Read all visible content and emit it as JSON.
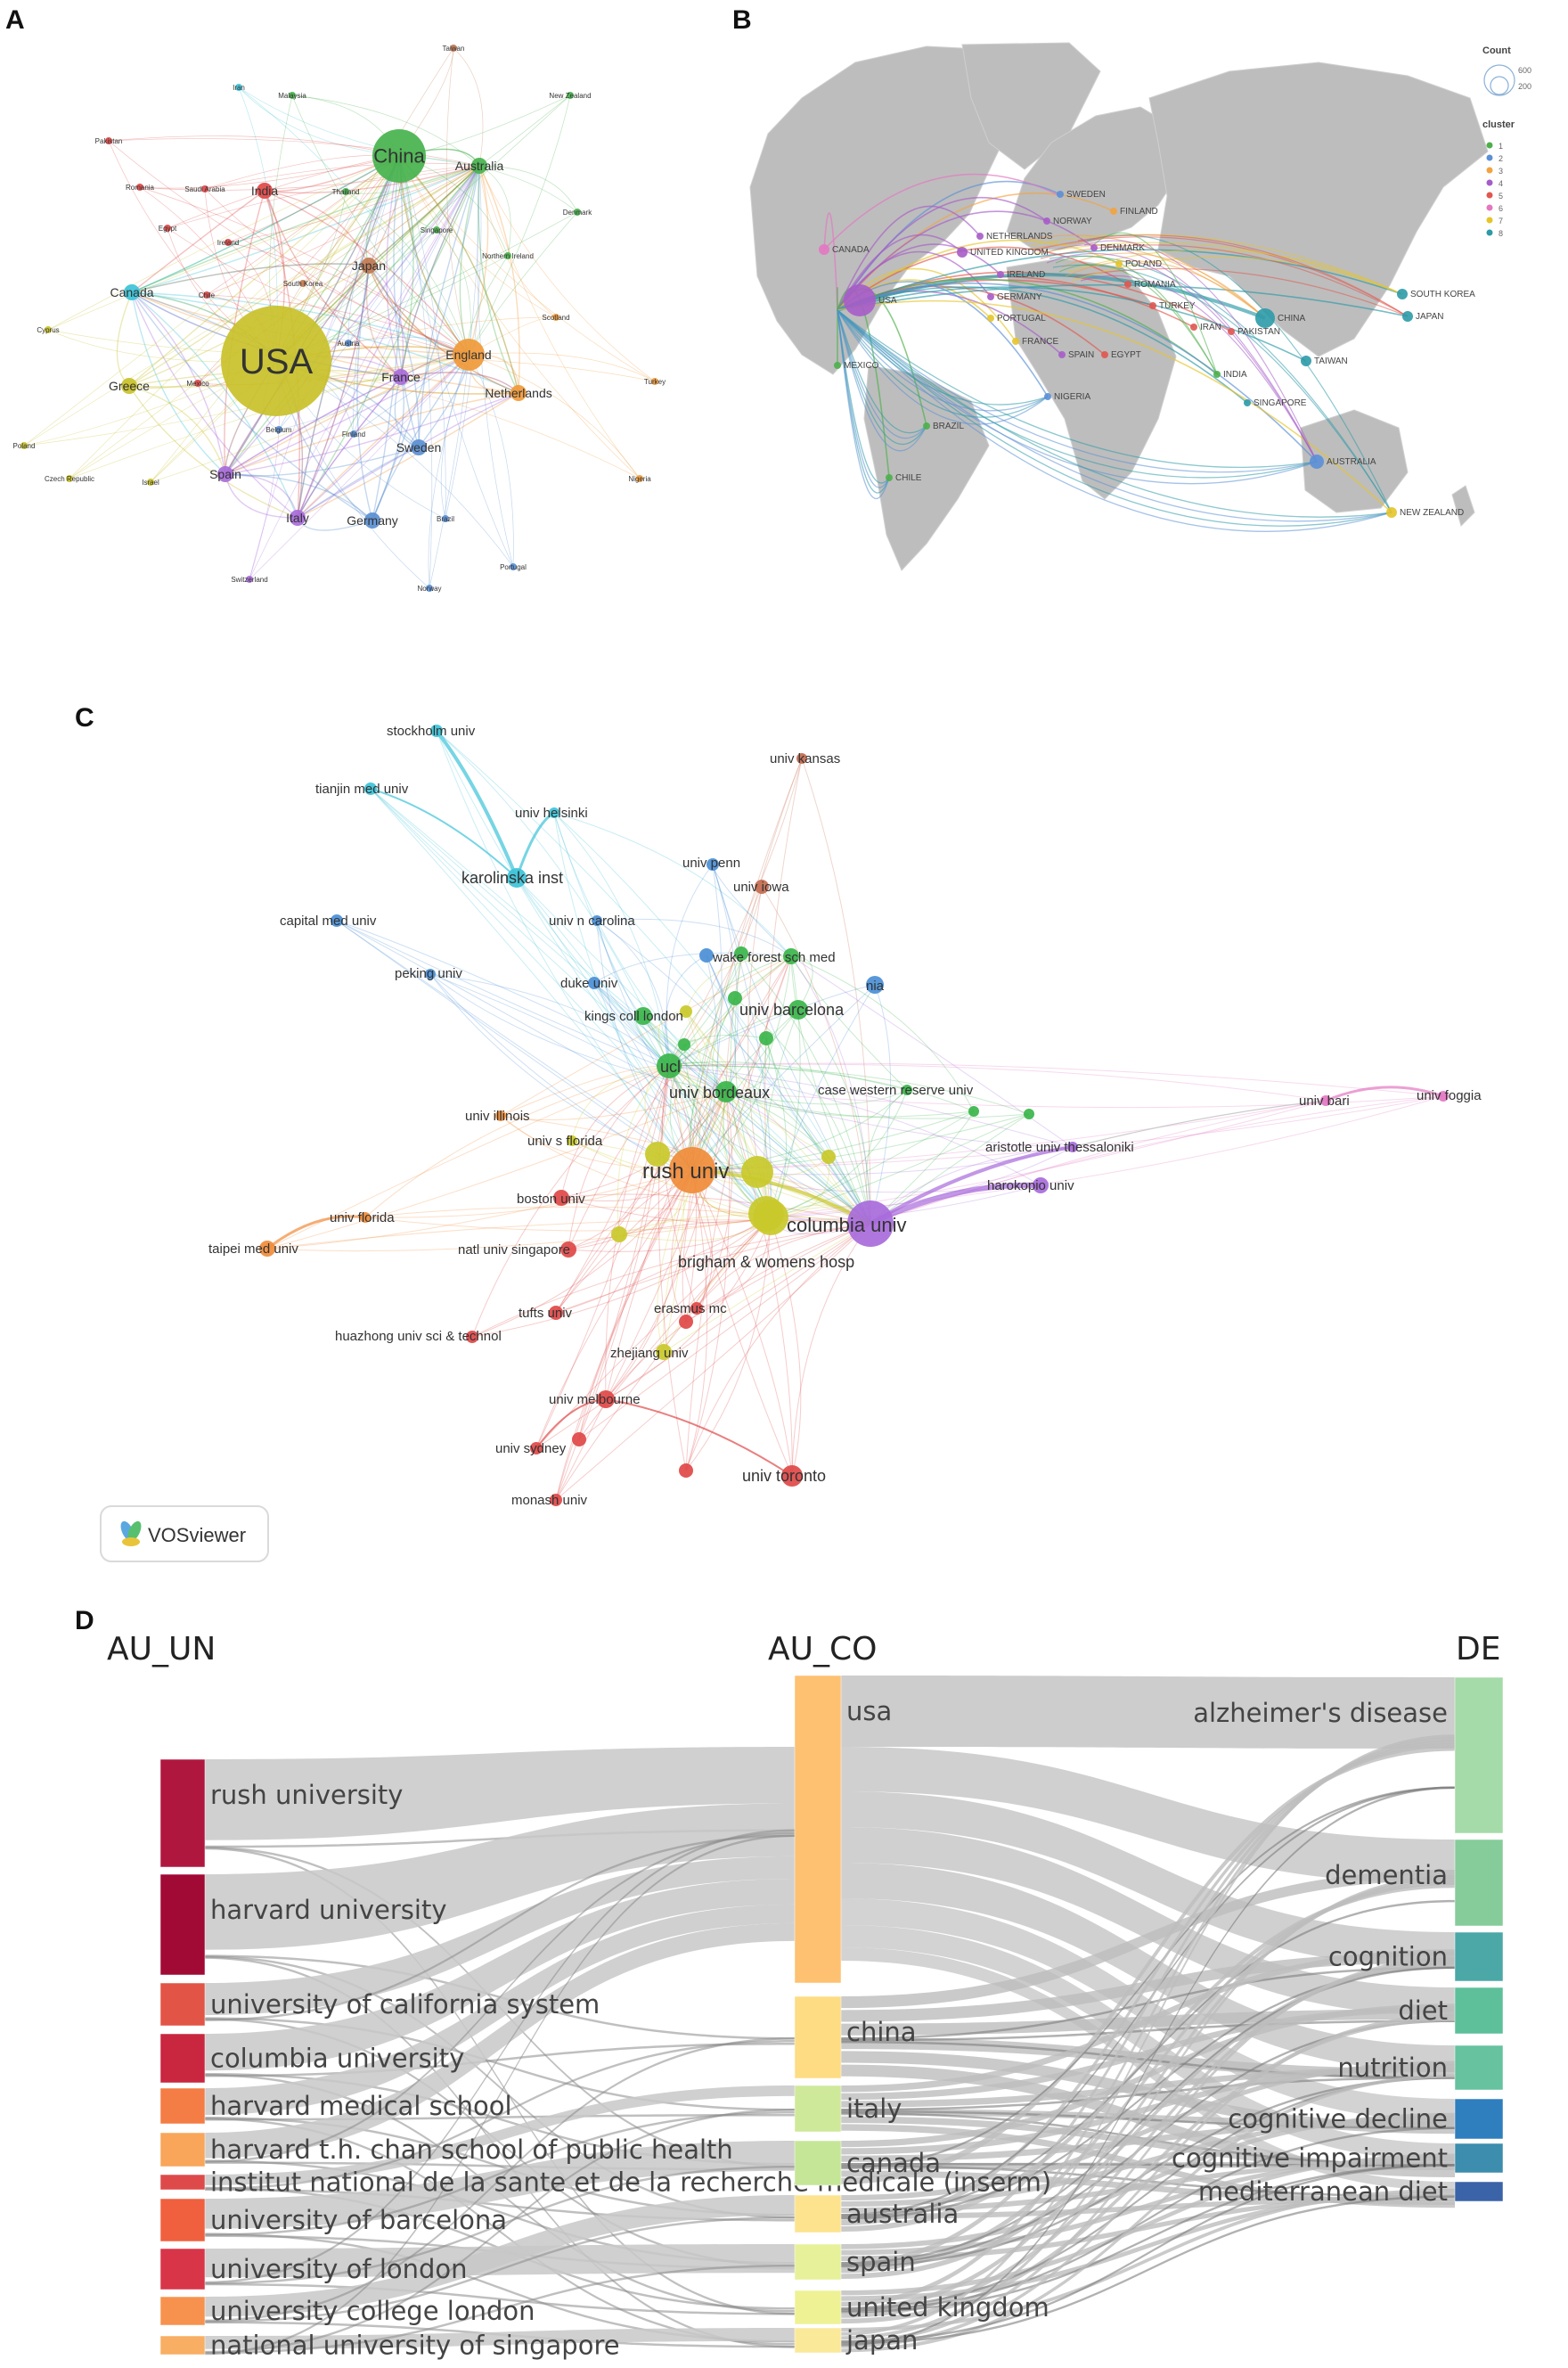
{
  "panels": {
    "a": "A",
    "b": "B",
    "c": "C",
    "d": "D"
  },
  "panel_a": {
    "nodes": [
      {
        "name": "USA",
        "cluster": 7,
        "size": 3
      },
      {
        "name": "China",
        "cluster": 1,
        "size": 2
      },
      {
        "name": "Australia",
        "cluster": 1,
        "size": 1
      },
      {
        "name": "England",
        "cluster": 3,
        "size": 1.5
      },
      {
        "name": "Netherlands",
        "cluster": 3,
        "size": 1
      },
      {
        "name": "Canada",
        "cluster": 8,
        "size": 1
      },
      {
        "name": "Japan",
        "cluster": 9,
        "size": 1
      },
      {
        "name": "France",
        "cluster": 6,
        "size": 1
      },
      {
        "name": "Spain",
        "cluster": 6,
        "size": 1
      },
      {
        "name": "Italy",
        "cluster": 6,
        "size": 1
      },
      {
        "name": "Germany",
        "cluster": 2,
        "size": 1
      },
      {
        "name": "Sweden",
        "cluster": 2,
        "size": 1
      },
      {
        "name": "Greece",
        "cluster": 7,
        "size": 1
      },
      {
        "name": "India",
        "cluster": 5,
        "size": 1
      },
      {
        "name": "Taiwan",
        "cluster": 9,
        "size": 0.5
      },
      {
        "name": "Iran",
        "cluster": 8,
        "size": 0.3
      },
      {
        "name": "Malaysia",
        "cluster": 1,
        "size": 0.3
      },
      {
        "name": "New Zealand",
        "cluster": 1,
        "size": 0.3
      },
      {
        "name": "Pakistan",
        "cluster": 5,
        "size": 0.3
      },
      {
        "name": "Romania",
        "cluster": 5,
        "size": 0.3
      },
      {
        "name": "Saudi Arabia",
        "cluster": 5,
        "size": 0.3
      },
      {
        "name": "Thailand",
        "cluster": 1,
        "size": 0.3
      },
      {
        "name": "Egypt",
        "cluster": 5,
        "size": 0.3
      },
      {
        "name": "Singapore",
        "cluster": 1,
        "size": 0.3
      },
      {
        "name": "Denmark",
        "cluster": 1,
        "size": 0.3
      },
      {
        "name": "Ireland",
        "cluster": 5,
        "size": 0.3
      },
      {
        "name": "Northern Ireland",
        "cluster": 1,
        "size": 0.3
      },
      {
        "name": "Chile",
        "cluster": 5,
        "size": 0.3
      },
      {
        "name": "South Korea",
        "cluster": 9,
        "size": 0.3
      },
      {
        "name": "Scotland",
        "cluster": 3,
        "size": 0.3
      },
      {
        "name": "Cyprus",
        "cluster": 7,
        "size": 0.3
      },
      {
        "name": "Austria",
        "cluster": 2,
        "size": 0.3
      },
      {
        "name": "Mexico",
        "cluster": 5,
        "size": 0.3
      },
      {
        "name": "Turkey",
        "cluster": 3,
        "size": 0.3
      },
      {
        "name": "Belgium",
        "cluster": 2,
        "size": 0.3
      },
      {
        "name": "Finland",
        "cluster": 2,
        "size": 0.3
      },
      {
        "name": "Poland",
        "cluster": 7,
        "size": 0.3
      },
      {
        "name": "Czech Republic",
        "cluster": 7,
        "size": 0.3
      },
      {
        "name": "Israel",
        "cluster": 7,
        "size": 0.3
      },
      {
        "name": "Nigeria",
        "cluster": 3,
        "size": 0.3
      },
      {
        "name": "Brazil",
        "cluster": 2,
        "size": 0.3
      },
      {
        "name": "Switzerland",
        "cluster": 6,
        "size": 0.3
      },
      {
        "name": "Norway",
        "cluster": 2,
        "size": 0.3
      },
      {
        "name": "Portugal",
        "cluster": 2,
        "size": 0.3
      }
    ]
  },
  "panel_b": {
    "legend_count_title": "Count",
    "legend_count_values": [
      "600",
      "200"
    ],
    "legend_cluster_title": "cluster",
    "clusters": [
      {
        "label": "1",
        "color": "#4daf4a"
      },
      {
        "label": "2",
        "color": "#5b8fd6"
      },
      {
        "label": "3",
        "color": "#f2a341"
      },
      {
        "label": "4",
        "color": "#a65cc8"
      },
      {
        "label": "5",
        "color": "#e0574f"
      },
      {
        "label": "6",
        "color": "#e377c2"
      },
      {
        "label": "7",
        "color": "#e6c42a"
      },
      {
        "label": "8",
        "color": "#2c9aa8"
      }
    ],
    "country_labels": [
      "SWEDEN",
      "FINLAND",
      "NORWAY",
      "NETHERLANDS",
      "DENMARK",
      "UNITED KINGDOM",
      "POLAND",
      "IRELAND",
      "ROMANIA",
      "GERMANY",
      "TURKEY",
      "PORTUGAL",
      "IRAN",
      "PAKISTAN",
      "FRANCE",
      "SPAIN",
      "EGYPT",
      "CHINA",
      "INDIA",
      "SOUTH KOREA",
      "JAPAN",
      "TAIWAN",
      "SINGAPORE",
      "NIGERIA",
      "CANADA",
      "USA",
      "MEXICO",
      "BRAZIL",
      "CHILE",
      "AUSTRALIA",
      "NEW ZEALAND"
    ]
  },
  "panel_c": {
    "nodes": [
      {
        "name": "stockholm univ",
        "color": "#3cc3d8",
        "r": 7
      },
      {
        "name": "tianjin med univ",
        "color": "#3cc3d8",
        "r": 7
      },
      {
        "name": "univ helsinki",
        "color": "#3cc3d8",
        "r": 6
      },
      {
        "name": "karolinska inst",
        "color": "#3cc3d8",
        "r": 11
      },
      {
        "name": "univ kansas",
        "color": "#c46a4f",
        "r": 6
      },
      {
        "name": "univ penn",
        "color": "#4a8fd6",
        "r": 7
      },
      {
        "name": "univ iowa",
        "color": "#c46a4f",
        "r": 8
      },
      {
        "name": "capital med univ",
        "color": "#4a8fd6",
        "r": 7
      },
      {
        "name": "univ n carolina",
        "color": "#4a8fd6",
        "r": 6
      },
      {
        "name": "wake forest sch med",
        "color": "#39b54a",
        "r": 9
      },
      {
        "name": "peking univ",
        "color": "#4a8fd6",
        "r": 6
      },
      {
        "name": "duke univ",
        "color": "#4a8fd6",
        "r": 7
      },
      {
        "name": "nia",
        "color": "#4a8fd6",
        "r": 10
      },
      {
        "name": "kings coll london",
        "color": "#39b54a",
        "r": 10
      },
      {
        "name": "univ barcelona",
        "color": "#39b54a",
        "r": 11
      },
      {
        "name": "ucl",
        "color": "#39b54a",
        "r": 14
      },
      {
        "name": "univ bordeaux",
        "color": "#39b54a",
        "r": 12
      },
      {
        "name": "case western reserve univ",
        "color": "#39b54a",
        "r": 6
      },
      {
        "name": "univ bari",
        "color": "#e377c2",
        "r": 6
      },
      {
        "name": "univ foggia",
        "color": "#e377c2",
        "r": 6
      },
      {
        "name": "univ illinois",
        "color": "#f08c3a",
        "r": 6
      },
      {
        "name": "univ s florida",
        "color": "#c9c92a",
        "r": 6
      },
      {
        "name": "rush univ",
        "color": "#f08c3a",
        "r": 26
      },
      {
        "name": "aristotle univ thessaloniki",
        "color": "#a86bdb",
        "r": 6
      },
      {
        "name": "harokopio univ",
        "color": "#a86bdb",
        "r": 9
      },
      {
        "name": "boston univ",
        "color": "#e04848",
        "r": 9
      },
      {
        "name": "columbia univ",
        "color": "#a86bdb",
        "r": 26
      },
      {
        "name": "univ florida",
        "color": "#f08c3a",
        "r": 6
      },
      {
        "name": "taipei med univ",
        "color": "#f08c3a",
        "r": 9
      },
      {
        "name": "natl univ singapore",
        "color": "#e04848",
        "r": 9
      },
      {
        "name": "brigham & womens hosp",
        "color": "#c9c92a",
        "r": 20
      },
      {
        "name": "erasmus mc",
        "color": "#e04848",
        "r": 7
      },
      {
        "name": "tufts univ",
        "color": "#e04848",
        "r": 8
      },
      {
        "name": "huazhong univ sci & technol",
        "color": "#e04848",
        "r": 7
      },
      {
        "name": "zhejiang univ",
        "color": "#c9c92a",
        "r": 9
      },
      {
        "name": "univ melbourne",
        "color": "#e04848",
        "r": 10
      },
      {
        "name": "univ sydney",
        "color": "#e04848",
        "r": 7
      },
      {
        "name": "univ toronto",
        "color": "#e04848",
        "r": 12
      },
      {
        "name": "monash univ",
        "color": "#e04848",
        "r": 7
      }
    ],
    "badge": "VOSviewer"
  },
  "panel_d": {
    "col_headers": [
      "AU_UN",
      "AU_CO",
      "DE"
    ],
    "au_un": [
      {
        "label": "rush university",
        "color": "#b0173f"
      },
      {
        "label": "harvard university",
        "color": "#a10a35"
      },
      {
        "label": "university of california system",
        "color": "#e25445"
      },
      {
        "label": "columbia university",
        "color": "#c9263f"
      },
      {
        "label": "harvard medical school",
        "color": "#f47c45"
      },
      {
        "label": "harvard t.h. chan school of public health",
        "color": "#f9a65a"
      },
      {
        "label": "institut national de la sante et de la recherche medicale (inserm)",
        "color": "#de4a4a"
      },
      {
        "label": "university of barcelona",
        "color": "#f0603f"
      },
      {
        "label": "university of london",
        "color": "#d83548"
      },
      {
        "label": "university college london",
        "color": "#f7924e"
      },
      {
        "label": "national university of singapore",
        "color": "#f8ae63"
      }
    ],
    "au_co": [
      {
        "label": "usa",
        "color": "#fdc171"
      },
      {
        "label": "china",
        "color": "#fedc83"
      },
      {
        "label": "italy",
        "color": "#cfe99a"
      },
      {
        "label": "canada",
        "color": "#c5e697"
      },
      {
        "label": "australia",
        "color": "#fde38e"
      },
      {
        "label": "spain",
        "color": "#e7f19a"
      },
      {
        "label": "united kingdom",
        "color": "#eef295"
      },
      {
        "label": "japan",
        "color": "#fbe99a"
      }
    ],
    "de": [
      {
        "label": "alzheimer's disease",
        "color": "#a5dba8"
      },
      {
        "label": "dementia",
        "color": "#86cc9a"
      },
      {
        "label": "cognition",
        "color": "#4ba8a6"
      },
      {
        "label": "diet",
        "color": "#5dc09b"
      },
      {
        "label": "nutrition",
        "color": "#66c29f"
      },
      {
        "label": "cognitive decline",
        "color": "#2f7fbe"
      },
      {
        "label": "cognitive impairment",
        "color": "#3c8dae"
      },
      {
        "label": "mediterranean diet",
        "color": "#3a63a8"
      }
    ]
  }
}
